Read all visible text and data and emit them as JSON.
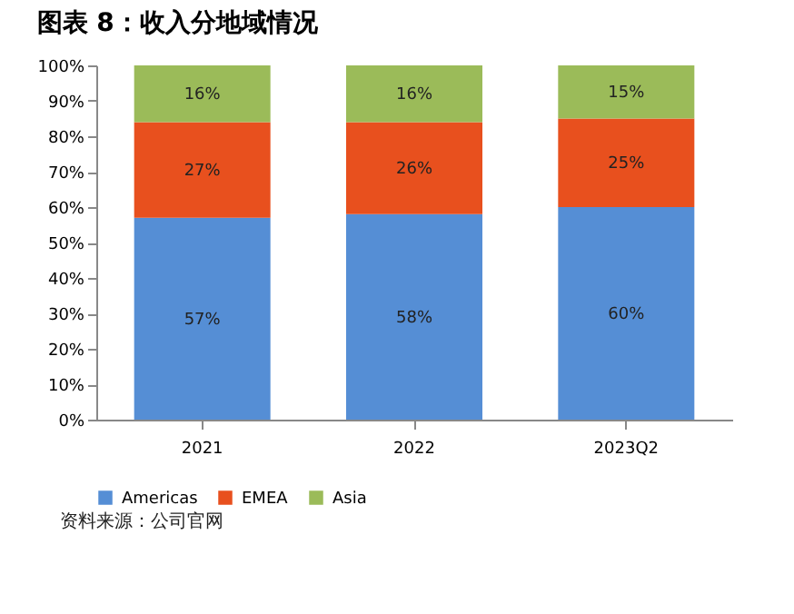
{
  "chart_data": {
    "type": "bar",
    "stacked": true,
    "title": "图表 8：收入分地域情况",
    "categories": [
      "2021",
      "2022",
      "2023Q2"
    ],
    "series": [
      {
        "name": "Americas",
        "color": "#558ed5",
        "values": [
          57,
          58,
          60
        ],
        "value_labels": [
          "57%",
          "58%",
          "60%"
        ]
      },
      {
        "name": "EMEA",
        "color": "#e8501e",
        "values": [
          27,
          26,
          25
        ],
        "value_labels": [
          "27%",
          "26%",
          "25%"
        ]
      },
      {
        "name": "Asia",
        "color": "#9bbb59",
        "values": [
          16,
          16,
          15
        ],
        "value_labels": [
          "16%",
          "16%",
          "15%"
        ]
      }
    ],
    "ylim": [
      0,
      100
    ],
    "yticks": [
      {
        "value": 0,
        "label": "0%"
      },
      {
        "value": 10,
        "label": "10%"
      },
      {
        "value": 20,
        "label": "20%"
      },
      {
        "value": 30,
        "label": "30%"
      },
      {
        "value": 40,
        "label": "40%"
      },
      {
        "value": 50,
        "label": "50%"
      },
      {
        "value": 60,
        "label": "60%"
      },
      {
        "value": 70,
        "label": "70%"
      },
      {
        "value": 80,
        "label": "80%"
      },
      {
        "value": 90,
        "label": "90%"
      },
      {
        "value": 100,
        "label": "100%"
      }
    ],
    "grid": false,
    "legend": "bottom left",
    "annotations": [
      "资料来源：公司官网"
    ]
  }
}
